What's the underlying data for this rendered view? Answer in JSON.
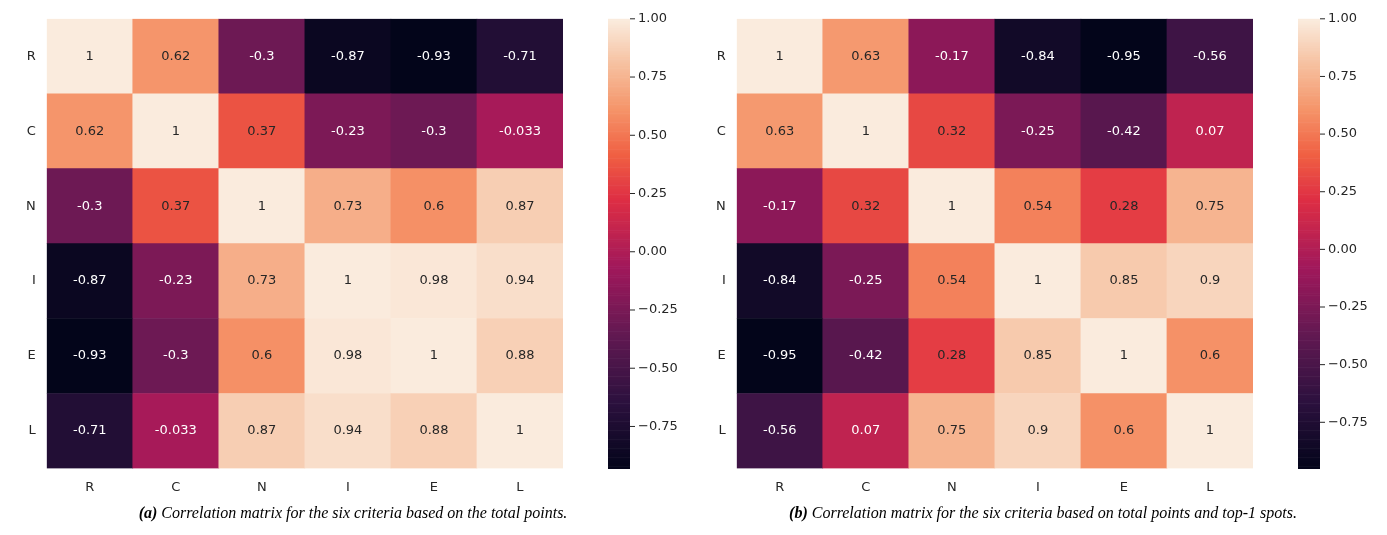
{
  "chart_data": [
    {
      "type": "heatmap",
      "categories": [
        "R",
        "C",
        "N",
        "I",
        "E",
        "L"
      ],
      "y_categories": [
        "R",
        "C",
        "N",
        "I",
        "E",
        "L"
      ],
      "cells": [
        [
          1,
          0.62,
          -0.3,
          -0.87,
          -0.93,
          -0.71
        ],
        [
          0.62,
          1,
          0.37,
          -0.23,
          -0.3,
          -0.033
        ],
        [
          -0.3,
          0.37,
          1,
          0.73,
          0.6,
          0.87
        ],
        [
          -0.87,
          -0.23,
          0.73,
          1,
          0.98,
          0.94
        ],
        [
          -0.93,
          -0.3,
          0.6,
          0.98,
          1,
          0.88
        ],
        [
          -0.71,
          -0.033,
          0.87,
          0.94,
          0.88,
          1
        ]
      ],
      "data_labels": true,
      "clim": [
        -0.93,
        1
      ],
      "cticks": [
        {
          "value": 1,
          "label": "1.00"
        },
        {
          "value": 0.75,
          "label": "0.75"
        },
        {
          "value": 0.5,
          "label": "0.50"
        },
        {
          "value": 0.25,
          "label": "0.25"
        },
        {
          "value": 0,
          "label": "0.00"
        },
        {
          "value": -0.25,
          "label": "−0.25"
        },
        {
          "value": -0.5,
          "label": "−0.50"
        },
        {
          "value": -0.75,
          "label": "−0.75"
        }
      ],
      "annotations": [
        "(a) Correlation matrix for the six criteria based on the total points."
      ]
    },
    {
      "type": "heatmap",
      "categories": [
        "R",
        "C",
        "N",
        "I",
        "E",
        "L"
      ],
      "y_categories": [
        "R",
        "C",
        "N",
        "I",
        "E",
        "L"
      ],
      "cells": [
        [
          1,
          0.63,
          -0.17,
          -0.84,
          -0.95,
          -0.56
        ],
        [
          0.63,
          1,
          0.32,
          -0.25,
          -0.42,
          0.07
        ],
        [
          -0.17,
          0.32,
          1,
          0.54,
          0.28,
          0.75
        ],
        [
          -0.84,
          -0.25,
          0.54,
          1,
          0.85,
          0.9
        ],
        [
          -0.95,
          -0.42,
          0.28,
          0.85,
          1,
          0.6
        ],
        [
          -0.56,
          0.07,
          0.75,
          0.9,
          0.6,
          1
        ]
      ],
      "data_labels": true,
      "clim": [
        -0.95,
        1
      ],
      "cticks": [
        {
          "value": 1,
          "label": "1.00"
        },
        {
          "value": 0.75,
          "label": "0.75"
        },
        {
          "value": 0.5,
          "label": "0.50"
        },
        {
          "value": 0.25,
          "label": "0.25"
        },
        {
          "value": 0,
          "label": "0.00"
        },
        {
          "value": -0.25,
          "label": "−0.25"
        },
        {
          "value": -0.5,
          "label": "−0.50"
        },
        {
          "value": -0.75,
          "label": "−0.75"
        }
      ],
      "annotations": [
        "(b) Correlation matrix for the six criteria based on total points and top-1 spots."
      ]
    }
  ]
}
